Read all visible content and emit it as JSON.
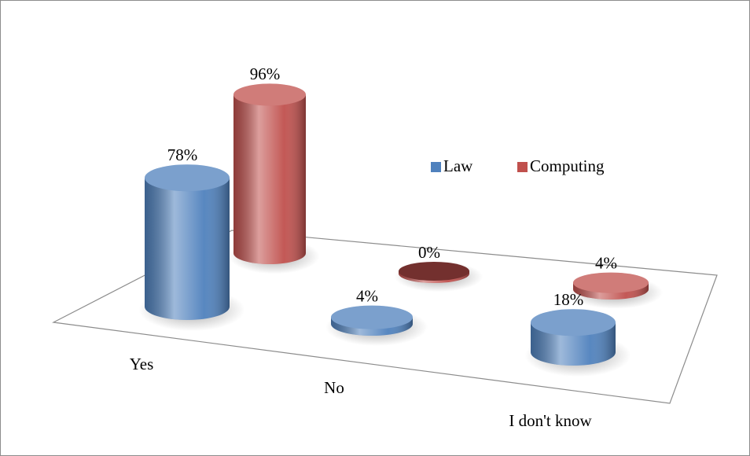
{
  "chart_data": {
    "type": "bar3d",
    "categories": [
      "Yes",
      "No",
      "I don't know"
    ],
    "series": [
      {
        "name": "Law",
        "color": "#4f81bd",
        "values": [
          78,
          4,
          18
        ],
        "value_labels": [
          "78%",
          "4%",
          "18%"
        ]
      },
      {
        "name": "Computing",
        "color": "#c0504d",
        "values": [
          96,
          0,
          4
        ],
        "value_labels": [
          "96%",
          "0%",
          "4%"
        ]
      }
    ]
  }
}
